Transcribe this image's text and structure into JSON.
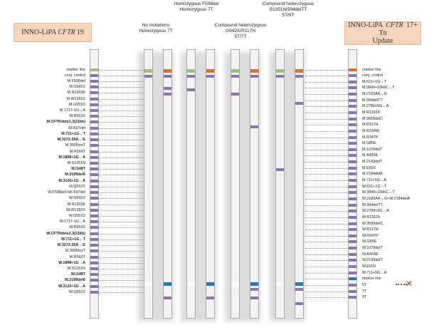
{
  "left_title": {
    "prefix": "INNO-LiPA ",
    "italic": "CFTR",
    "suffix": "19"
  },
  "right_title": {
    "prefix": "INNO-LiPA ",
    "italic": "CFTR",
    "suffix": "17+ Tn",
    "line2": "Update"
  },
  "headers": [
    {
      "lines": [
        "No mutations",
        "Homozygous 7T"
      ]
    },
    {
      "lines": [
        "Homozygous F508del",
        "Homozygous 7T"
      ]
    },
    {
      "lines": [
        "Compound heterozygous",
        "G542X/R117H",
        "5T/7T"
      ]
    },
    {
      "lines": [
        "Compound heterozygous",
        "S1251N/394delTT",
        "5T/9T"
      ]
    }
  ],
  "colors": {
    "purple": "#8a77b0",
    "green": "#9ac27a",
    "orange": "#e0702e",
    "blue": "#2a78b8",
    "strip": "#f3f3f3",
    "title_bg": "#f6d5bf",
    "red_marker": "#d43b2a"
  },
  "left_probes": [
    {
      "text": "marker line"
    },
    {
      "text": "conj. control"
    },
    {
      "text": "M.F508del"
    },
    {
      "text": "M.G542X"
    },
    {
      "text": "M.N1303K"
    },
    {
      "text": "M.W1282X"
    },
    {
      "text": "M.G551D"
    },
    {
      "text": "M.1717-1G→A"
    },
    {
      "text": "M.R553X"
    },
    {
      "text": "M.CFTRdele2,3(21kb)",
      "bold": true
    },
    {
      "text": "M.I507del"
    },
    {
      "text": "M.711+1G→T",
      "bold": true
    },
    {
      "text": "M.3272-26A→G",
      "bold": true
    },
    {
      "text": "M.3905insT"
    },
    {
      "text": "M.R560T"
    },
    {
      "text": "M.1898+1G→A",
      "bold": true
    },
    {
      "text": "M.S1251N"
    },
    {
      "text": "M.I148T",
      "bold": true
    },
    {
      "text": "M.3199del6",
      "bold": true
    },
    {
      "text": "M.3120+1G→A",
      "bold": true
    },
    {
      "text": "M.Q552X"
    },
    {
      "text": "W.F508del+W.I507del"
    },
    {
      "text": "W.G542X"
    },
    {
      "text": "W.N1303K"
    },
    {
      "text": "W.W1282X"
    },
    {
      "text": "W.G551D"
    },
    {
      "text": "W.1717-1G→A"
    },
    {
      "text": "W.R553X"
    },
    {
      "text": "W.CFTRdele2,3(21kb)",
      "bold": true
    },
    {
      "text": "W.711+1G→T",
      "bold": true
    },
    {
      "text": "W.3272-26A→G",
      "bold": true
    },
    {
      "text": "W.3905insT"
    },
    {
      "text": "W.R560T"
    },
    {
      "text": "W.1898+1G→A",
      "bold": true
    },
    {
      "text": "W.S1251N"
    },
    {
      "text": "W.I148T",
      "bold": true
    },
    {
      "text": "W.3199del6",
      "bold": true
    },
    {
      "text": "W.3120+1G→A",
      "bold": true
    },
    {
      "text": "W.Q552X"
    }
  ],
  "right_probes": [
    "marker line",
    "conj. control",
    "M.621+1G→T",
    "M.3849+10kbC→T",
    "M.2183AA→G",
    "M.394delTT",
    "M.2789+5G→A",
    "M.R1162X",
    "M.3659delC",
    "M.R117H",
    "M.R334W",
    "M.R347P",
    "M.G85E",
    "M.1078delT",
    "M.A455E",
    "M.2143delT",
    "M.E60X",
    "M.2184delA",
    "M.711+5G→A",
    "W.621+1G→T",
    "W.3849+10kbC→T",
    "W.2183AA→G+W.2184delA",
    "W.394delTT",
    "W.2789+5G→A",
    "W.R1162X",
    "W.3659delC",
    "W.R117H",
    "W.R347P",
    "W.G85E",
    "W.1078delT",
    "W.A455E",
    "W.2143delT",
    "W.E60X",
    "W.711+5G→A",
    "marker line",
    "5T",
    "7T",
    "9T"
  ]
}
